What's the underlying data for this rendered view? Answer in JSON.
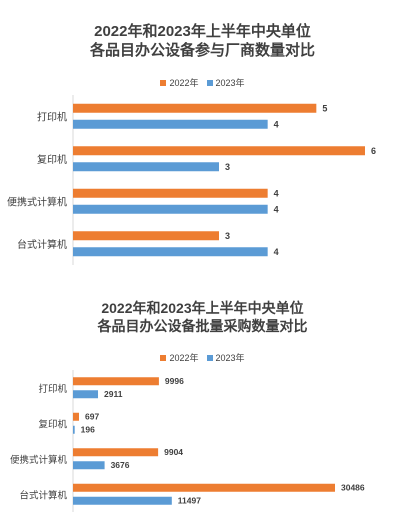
{
  "colors": {
    "s2022": "#ED7D31",
    "s2023": "#5B9BD5",
    "axis": "#D9D9D9",
    "text": "#404040"
  },
  "chart_data": [
    {
      "type": "bar",
      "orientation": "horizontal",
      "title_lines": [
        "2022年和2023年上半年中央单位",
        "各品目办公设备参与厂商数量对比"
      ],
      "categories": [
        "打印机",
        "复印机",
        "便携式计算机",
        "台式计算机"
      ],
      "series": [
        {
          "name": "2022年",
          "values": [
            5,
            6,
            4,
            3
          ]
        },
        {
          "name": "2023年",
          "values": [
            4,
            3,
            4,
            4
          ]
        }
      ],
      "xlim": [
        0,
        6
      ],
      "legend": "top",
      "grid": false,
      "data_labels": true
    },
    {
      "type": "bar",
      "orientation": "horizontal",
      "title_lines": [
        "2022年和2023年上半年中央单位",
        "各品目办公设备批量采购数量对比"
      ],
      "categories": [
        "打印机",
        "复印机",
        "便携式计算机",
        "台式计算机"
      ],
      "series": [
        {
          "name": "2022年",
          "values": [
            9996,
            697,
            9904,
            30486
          ]
        },
        {
          "name": "2023年",
          "values": [
            2911,
            196,
            3676,
            11497
          ]
        }
      ],
      "xlim": [
        0,
        30486
      ],
      "legend": "top",
      "grid": false,
      "data_labels": true
    }
  ]
}
